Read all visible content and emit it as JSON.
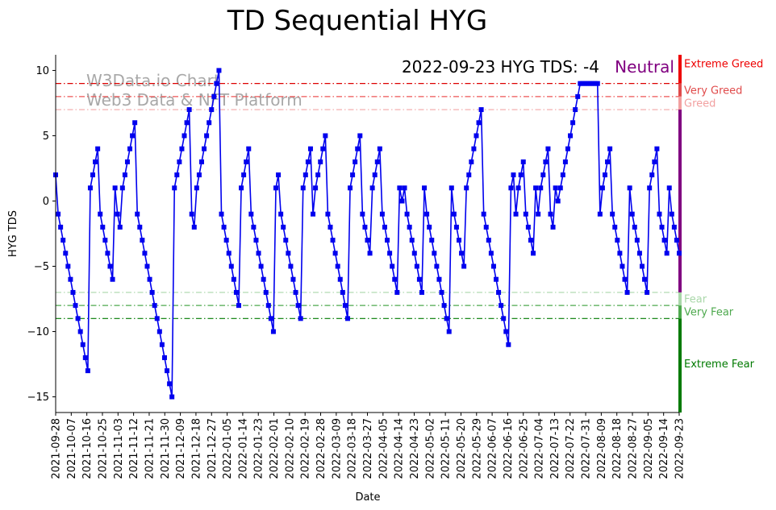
{
  "chart_data": {
    "type": "line",
    "title": "TD Sequential HYG",
    "xlabel": "Date",
    "ylabel": "HYG TDS",
    "ylim": [
      -16.2,
      11.2
    ],
    "y_ticks": [
      10,
      5,
      0,
      -5,
      -10,
      -15
    ],
    "y_tick_labels": [
      "10",
      "5",
      "0",
      "−5",
      "−10",
      "−15"
    ],
    "x_tick_labels": [
      "2021-09-28",
      "2021-10-07",
      "2021-10-16",
      "2021-10-25",
      "2021-11-03",
      "2021-11-12",
      "2021-11-21",
      "2021-11-30",
      "2021-12-09",
      "2021-12-18",
      "2021-12-27",
      "2022-01-05",
      "2022-01-14",
      "2022-01-23",
      "2022-02-01",
      "2022-02-10",
      "2022-02-19",
      "2022-02-28",
      "2022-03-09",
      "2022-03-18",
      "2022-03-27",
      "2022-04-05",
      "2022-04-14",
      "2022-04-23",
      "2022-05-02",
      "2022-05-11",
      "2022-05-20",
      "2022-05-29",
      "2022-06-07",
      "2022-06-16",
      "2022-06-25",
      "2022-07-04",
      "2022-07-13",
      "2022-07-22",
      "2022-07-31",
      "2022-08-09",
      "2022-08-18",
      "2022-08-27",
      "2022-09-05",
      "2022-09-14",
      "2022-09-23"
    ],
    "series": [
      {
        "name": "HYG TDS",
        "color": "#0000ee",
        "values": [
          2,
          -1,
          -2,
          -3,
          -4,
          -5,
          -6,
          -7,
          -8,
          -9,
          -10,
          -11,
          -12,
          -13,
          1,
          2,
          3,
          4,
          -1,
          -2,
          -3,
          -4,
          -5,
          -6,
          1,
          -1,
          -2,
          1,
          2,
          3,
          4,
          5,
          6,
          -1,
          -2,
          -3,
          -4,
          -5,
          -6,
          -7,
          -8,
          -9,
          -10,
          -11,
          -12,
          -13,
          -14,
          -15,
          1,
          2,
          3,
          4,
          5,
          6,
          7,
          -1,
          -2,
          1,
          2,
          3,
          4,
          5,
          6,
          7,
          8,
          9,
          10,
          -1,
          -2,
          -3,
          -4,
          -5,
          -6,
          -7,
          -8,
          1,
          2,
          3,
          4,
          -1,
          -2,
          -3,
          -4,
          -5,
          -6,
          -7,
          -8,
          -9,
          -10,
          1,
          2,
          -1,
          -2,
          -3,
          -4,
          -5,
          -6,
          -7,
          -8,
          -9,
          1,
          2,
          3,
          4,
          -1,
          1,
          2,
          3,
          4,
          5,
          -1,
          -2,
          -3,
          -4,
          -5,
          -6,
          -7,
          -8,
          -9,
          1,
          2,
          3,
          4,
          5,
          -1,
          -2,
          -3,
          -4,
          1,
          2,
          3,
          4,
          -1,
          -2,
          -3,
          -4,
          -5,
          -6,
          -7,
          1,
          0,
          1,
          -1,
          -2,
          -3,
          -4,
          -5,
          -6,
          -7,
          1,
          -1,
          -2,
          -3,
          -4,
          -5,
          -6,
          -7,
          -8,
          -9,
          -10,
          1,
          -1,
          -2,
          -3,
          -4,
          -5,
          1,
          2,
          3,
          4,
          5,
          6,
          7,
          -1,
          -2,
          -3,
          -4,
          -5,
          -6,
          -7,
          -8,
          -9,
          -10,
          -11,
          1,
          2,
          -1,
          1,
          2,
          3,
          -1,
          -2,
          -3,
          -4,
          1,
          -1,
          1,
          2,
          3,
          4,
          -1,
          -2,
          1,
          0,
          1,
          2,
          3,
          4,
          5,
          6,
          7,
          8,
          9,
          9,
          9,
          9,
          9,
          9,
          9,
          9,
          -1,
          1,
          2,
          3,
          4,
          -1,
          -2,
          -3,
          -4,
          -5,
          -6,
          -7,
          1,
          -1,
          -2,
          -3,
          -4,
          -5,
          -6,
          -7,
          1,
          2,
          3,
          4,
          -1,
          -2,
          -3,
          -4,
          1,
          -1,
          -2,
          -3,
          -4
        ]
      }
    ],
    "reference_lines": [
      {
        "name": "Extreme Greed",
        "y": 9,
        "color": "#dd0000"
      },
      {
        "name": "Very Greed",
        "y": 8,
        "color": "#ee5555"
      },
      {
        "name": "Greed",
        "y": 7,
        "color": "#f2a7a7"
      },
      {
        "name": "Fear",
        "y": -7,
        "color": "#a9d7a9"
      },
      {
        "name": "Very Fear",
        "y": -8,
        "color": "#4ea94e"
      },
      {
        "name": "Extreme Fear",
        "y": -9,
        "color": "#007a00"
      }
    ],
    "zones": [
      {
        "label": "Extreme Greed",
        "from": 9,
        "to": 11.2,
        "color": "#ee0000",
        "label_color": "#ee0000"
      },
      {
        "label": "Very Greed",
        "from": 8,
        "to": 9,
        "color": "#e04a4a",
        "label_color": "#e04a4a"
      },
      {
        "label": "Greed",
        "from": 7,
        "to": 8,
        "color": "#f2a0a0",
        "label_color": "#f2a0a0"
      },
      {
        "label": "Neutral",
        "from": -7,
        "to": 7,
        "color": "#800080",
        "label_color": "#800080"
      },
      {
        "label": "Fear",
        "from": -8,
        "to": -7,
        "color": "#a9d7a9",
        "label_color": "#a9d7a9"
      },
      {
        "label": "Very Fear",
        "from": -9,
        "to": -8,
        "color": "#4ea94e",
        "label_color": "#4ea94e"
      },
      {
        "label": "Extreme Fear",
        "from": -16.2,
        "to": -9,
        "color": "#007a00",
        "label_color": "#007a00"
      }
    ],
    "status": {
      "text": "2022-09-23 HYG TDS: -4",
      "sentiment": "Neutral",
      "sentiment_color": "#800080"
    },
    "watermark": [
      "W3Data.io Chart",
      "Web3 Data & NFT Platform"
    ]
  }
}
